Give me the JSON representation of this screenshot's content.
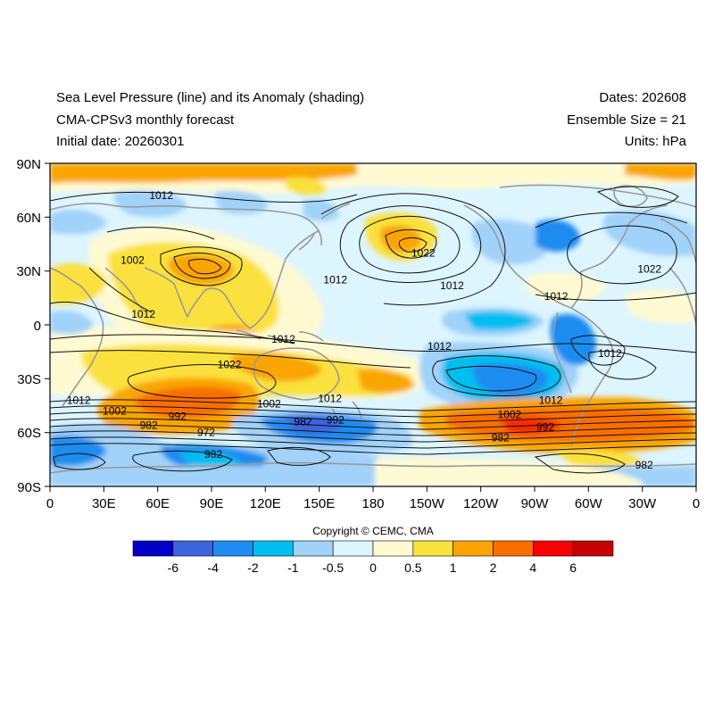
{
  "titles": {
    "left_line1": "Sea Level Pressure (line) and its Anomaly (shading)",
    "left_line2": "CMA-CPSv3 monthly forecast",
    "left_line3": "Initial date: 20260301",
    "right_line1": "Dates: 202608",
    "right_line2": "Ensemble Size = 21",
    "right_line3": "Units: hPa"
  },
  "axes": {
    "lat_labels": [
      "90N",
      "60N",
      "30N",
      "0",
      "30S",
      "60S",
      "90S"
    ],
    "lon_labels": [
      "0",
      "30E",
      "60E",
      "90E",
      "120E",
      "150E",
      "180",
      "150W",
      "120W",
      "90W",
      "60W",
      "30W",
      "0"
    ]
  },
  "contour_labels": [
    {
      "text": "1012",
      "lon": 62,
      "lat": 70
    },
    {
      "text": "1002",
      "lon": 46,
      "lat": 34
    },
    {
      "text": "1012",
      "lon": 52,
      "lat": 4
    },
    {
      "text": "1012",
      "lon": 130,
      "lat": -10
    },
    {
      "text": "1022",
      "lon": 100,
      "lat": -24
    },
    {
      "text": "1012",
      "lon": 159,
      "lat": 23
    },
    {
      "text": "1022",
      "lon": 208,
      "lat": 38
    },
    {
      "text": "1012",
      "lon": 224,
      "lat": 20
    },
    {
      "text": "1012",
      "lon": 217,
      "lat": -14
    },
    {
      "text": "1012",
      "lon": 282,
      "lat": 14
    },
    {
      "text": "1022",
      "lon": 334,
      "lat": 29
    },
    {
      "text": "1012",
      "lon": 312,
      "lat": -18
    },
    {
      "text": "1012",
      "lon": 156,
      "lat": -43
    },
    {
      "text": "1012",
      "lon": 279,
      "lat": -44
    },
    {
      "text": "1012",
      "lon": 16,
      "lat": -44
    },
    {
      "text": "1002",
      "lon": 36,
      "lat": -50
    },
    {
      "text": "1002",
      "lon": 122,
      "lat": -46
    },
    {
      "text": "1002",
      "lon": 256,
      "lat": -52
    },
    {
      "text": "992",
      "lon": 71,
      "lat": -53
    },
    {
      "text": "992",
      "lon": 159,
      "lat": -55
    },
    {
      "text": "992",
      "lon": 276,
      "lat": -59
    },
    {
      "text": "982",
      "lon": 55,
      "lat": -58
    },
    {
      "text": "982",
      "lon": 141,
      "lat": -56
    },
    {
      "text": "982",
      "lon": 251,
      "lat": -65
    },
    {
      "text": "982",
      "lon": 331,
      "lat": -80
    },
    {
      "text": "972",
      "lon": 87,
      "lat": -62
    },
    {
      "text": "982",
      "lon": 91,
      "lat": -74
    }
  ],
  "colorbar": {
    "colors": [
      "#0000c8",
      "#3c64dc",
      "#1e8cf0",
      "#00bef0",
      "#a0d2fa",
      "#dcf5ff",
      "#fffad2",
      "#fae13c",
      "#faa500",
      "#fa6e00",
      "#fa0000",
      "#c80000"
    ],
    "labels": [
      "-6",
      "-4",
      "-2",
      "-1",
      "-0.5",
      "0",
      "0.5",
      "1",
      "2",
      "4",
      "6"
    ]
  },
  "copyright": "Copyright © CEMC, CMA"
}
